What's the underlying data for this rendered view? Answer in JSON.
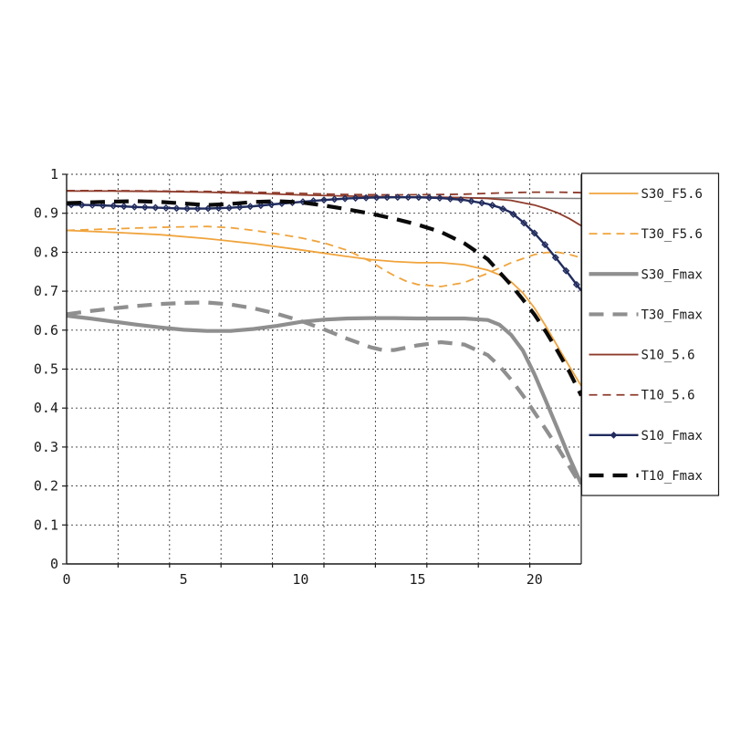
{
  "chart_data": {
    "type": "line",
    "title": "",
    "xlabel": "",
    "ylabel": "",
    "xlim": [
      0,
      22
    ],
    "ylim": [
      0,
      1
    ],
    "grid": true,
    "x_gridline_step": 2.2,
    "y_gridline_step": 0.1,
    "x_ticks": [
      {
        "value": 0,
        "label": "0"
      },
      {
        "value": 5,
        "label": "5"
      },
      {
        "value": 10,
        "label": "10"
      },
      {
        "value": 15,
        "label": "15"
      },
      {
        "value": 20,
        "label": "20"
      }
    ],
    "y_ticks": [
      {
        "value": 0,
        "label": "0"
      },
      {
        "value": 0.1,
        "label": "0.1"
      },
      {
        "value": 0.2,
        "label": "0.2"
      },
      {
        "value": 0.3,
        "label": "0.3"
      },
      {
        "value": 0.4,
        "label": "0.4"
      },
      {
        "value": 0.5,
        "label": "0.5"
      },
      {
        "value": 0.6,
        "label": "0.6"
      },
      {
        "value": 0.7,
        "label": "0.7"
      },
      {
        "value": 0.8,
        "label": "0.8"
      },
      {
        "value": 0.9,
        "label": "0.9"
      },
      {
        "value": 1,
        "label": "1"
      }
    ],
    "legend_position": "right",
    "legend_labels": [
      "S10_Fmax",
      "T10_Fmax",
      "S10_5.6",
      "T10_5.6",
      "S30_Fmax",
      "T30_Fmax",
      "S30_F5.6",
      "T30_F5.6"
    ],
    "series": [
      {
        "name": "",
        "in_legend": false,
        "color": "#7f7f7f",
        "dash": false,
        "weight": "hairline",
        "marker": null,
        "points": [
          [
            14,
            0.941
          ],
          [
            22,
            0.938
          ]
        ]
      },
      {
        "name": "S30_F5.6",
        "color": "#f0a43c",
        "dash": false,
        "weight": "thin",
        "marker": null,
        "points": [
          [
            0,
            0.856
          ],
          [
            2,
            0.851
          ],
          [
            4,
            0.845
          ],
          [
            6,
            0.835
          ],
          [
            8,
            0.822
          ],
          [
            10,
            0.806
          ],
          [
            12,
            0.789
          ],
          [
            13,
            0.781
          ],
          [
            14,
            0.776
          ],
          [
            15,
            0.773
          ],
          [
            16,
            0.773
          ],
          [
            17,
            0.768
          ],
          [
            18,
            0.754
          ],
          [
            18.5,
            0.742
          ],
          [
            19,
            0.724
          ],
          [
            19.5,
            0.696
          ],
          [
            20,
            0.657
          ],
          [
            20.5,
            0.609
          ],
          [
            21,
            0.557
          ],
          [
            21.5,
            0.506
          ],
          [
            22,
            0.457
          ]
        ]
      },
      {
        "name": "T30_F5.6",
        "color": "#f0a43c",
        "dash": true,
        "weight": "thin",
        "marker": null,
        "points": [
          [
            0,
            0.856
          ],
          [
            1,
            0.858
          ],
          [
            2,
            0.86
          ],
          [
            3,
            0.862
          ],
          [
            4,
            0.864
          ],
          [
            5,
            0.865
          ],
          [
            6,
            0.866
          ],
          [
            7,
            0.863
          ],
          [
            8,
            0.856
          ],
          [
            9,
            0.847
          ],
          [
            10,
            0.837
          ],
          [
            11,
            0.824
          ],
          [
            12,
            0.805
          ],
          [
            13,
            0.776
          ],
          [
            13.5,
            0.757
          ],
          [
            14,
            0.74
          ],
          [
            14.5,
            0.726
          ],
          [
            15,
            0.717
          ],
          [
            16,
            0.712
          ],
          [
            17,
            0.722
          ],
          [
            18,
            0.746
          ],
          [
            19,
            0.773
          ],
          [
            20,
            0.794
          ],
          [
            20.5,
            0.799
          ],
          [
            21,
            0.8
          ],
          [
            21.5,
            0.794
          ],
          [
            22,
            0.786
          ]
        ]
      },
      {
        "name": "S30_Fmax",
        "color": "#8f8f8f",
        "dash": false,
        "weight": "thick",
        "marker": null,
        "points": [
          [
            0,
            0.637
          ],
          [
            1,
            0.63
          ],
          [
            2,
            0.622
          ],
          [
            3,
            0.614
          ],
          [
            4,
            0.607
          ],
          [
            5,
            0.601
          ],
          [
            6,
            0.598
          ],
          [
            7,
            0.598
          ],
          [
            8,
            0.603
          ],
          [
            9,
            0.611
          ],
          [
            10,
            0.621
          ],
          [
            11,
            0.627
          ],
          [
            12,
            0.63
          ],
          [
            13,
            0.631
          ],
          [
            14,
            0.631
          ],
          [
            15,
            0.63
          ],
          [
            16,
            0.63
          ],
          [
            17,
            0.63
          ],
          [
            18,
            0.626
          ],
          [
            18.5,
            0.614
          ],
          [
            19,
            0.588
          ],
          [
            19.5,
            0.548
          ],
          [
            20,
            0.487
          ],
          [
            20.5,
            0.417
          ],
          [
            21,
            0.345
          ],
          [
            21.5,
            0.272
          ],
          [
            22,
            0.205
          ]
        ]
      },
      {
        "name": "T30_Fmax",
        "color": "#8f8f8f",
        "dash": true,
        "weight": "thick",
        "marker": null,
        "points": [
          [
            0,
            0.641
          ],
          [
            1,
            0.649
          ],
          [
            2,
            0.656
          ],
          [
            3,
            0.662
          ],
          [
            4,
            0.667
          ],
          [
            5,
            0.67
          ],
          [
            6,
            0.671
          ],
          [
            7,
            0.666
          ],
          [
            8,
            0.656
          ],
          [
            9,
            0.642
          ],
          [
            10,
            0.624
          ],
          [
            11,
            0.602
          ],
          [
            12,
            0.578
          ],
          [
            13,
            0.556
          ],
          [
            13.5,
            0.549
          ],
          [
            14,
            0.549
          ],
          [
            15,
            0.561
          ],
          [
            16,
            0.569
          ],
          [
            17,
            0.563
          ],
          [
            18,
            0.536
          ],
          [
            18.5,
            0.508
          ],
          [
            19,
            0.473
          ],
          [
            19.5,
            0.433
          ],
          [
            20,
            0.389
          ],
          [
            20.5,
            0.344
          ],
          [
            21,
            0.298
          ],
          [
            21.5,
            0.249
          ],
          [
            22,
            0.2
          ]
        ]
      },
      {
        "name": "S10_5.6",
        "color": "#8e3c2c",
        "dash": false,
        "weight": "thin",
        "marker": null,
        "points": [
          [
            0,
            0.957
          ],
          [
            2,
            0.957
          ],
          [
            4,
            0.956
          ],
          [
            6,
            0.954
          ],
          [
            8,
            0.951
          ],
          [
            10,
            0.947
          ],
          [
            12,
            0.944
          ],
          [
            14,
            0.942
          ],
          [
            16,
            0.941
          ],
          [
            17,
            0.94
          ],
          [
            18,
            0.938
          ],
          [
            19,
            0.933
          ],
          [
            20,
            0.921
          ],
          [
            20.5,
            0.912
          ],
          [
            21,
            0.901
          ],
          [
            21.5,
            0.886
          ],
          [
            22,
            0.868
          ]
        ]
      },
      {
        "name": "T10_5.6",
        "color": "#8e3c2c",
        "dash": true,
        "weight": "thin",
        "marker": null,
        "points": [
          [
            0,
            0.958
          ],
          [
            2,
            0.958
          ],
          [
            4,
            0.957
          ],
          [
            6,
            0.956
          ],
          [
            8,
            0.954
          ],
          [
            10,
            0.951
          ],
          [
            12,
            0.948
          ],
          [
            14,
            0.947
          ],
          [
            16,
            0.948
          ],
          [
            17,
            0.949
          ],
          [
            18,
            0.951
          ],
          [
            19,
            0.953
          ],
          [
            20,
            0.954
          ],
          [
            21,
            0.954
          ],
          [
            22,
            0.953
          ]
        ]
      },
      {
        "name": "S10_Fmax",
        "color": "#212c5e",
        "dash": false,
        "weight": "medium",
        "marker": "diamond",
        "points": [
          [
            0,
            0.922
          ],
          [
            1,
            0.921
          ],
          [
            2,
            0.919
          ],
          [
            3,
            0.916
          ],
          [
            4,
            0.914
          ],
          [
            5,
            0.912
          ],
          [
            6,
            0.912
          ],
          [
            7,
            0.914
          ],
          [
            8,
            0.918
          ],
          [
            9,
            0.924
          ],
          [
            10,
            0.929
          ],
          [
            11,
            0.934
          ],
          [
            12,
            0.938
          ],
          [
            13,
            0.94
          ],
          [
            14,
            0.941
          ],
          [
            15,
            0.941
          ],
          [
            16,
            0.939
          ],
          [
            17,
            0.934
          ],
          [
            18,
            0.924
          ],
          [
            18.5,
            0.915
          ],
          [
            19,
            0.902
          ],
          [
            19.5,
            0.878
          ],
          [
            20,
            0.849
          ],
          [
            20.5,
            0.816
          ],
          [
            21,
            0.779
          ],
          [
            21.5,
            0.741
          ],
          [
            22,
            0.701
          ]
        ]
      },
      {
        "name": "T10_Fmax",
        "color": "#0a0a0a",
        "dash": true,
        "weight": "thick",
        "marker": null,
        "points": [
          [
            0,
            0.926
          ],
          [
            1,
            0.928
          ],
          [
            2,
            0.93
          ],
          [
            3,
            0.931
          ],
          [
            4,
            0.929
          ],
          [
            5,
            0.925
          ],
          [
            6,
            0.921
          ],
          [
            7,
            0.924
          ],
          [
            8,
            0.929
          ],
          [
            9,
            0.931
          ],
          [
            10,
            0.928
          ],
          [
            11,
            0.92
          ],
          [
            12,
            0.91
          ],
          [
            13,
            0.899
          ],
          [
            14,
            0.886
          ],
          [
            15,
            0.871
          ],
          [
            16,
            0.852
          ],
          [
            17,
            0.823
          ],
          [
            18,
            0.782
          ],
          [
            19,
            0.716
          ],
          [
            19.5,
            0.679
          ],
          [
            20,
            0.64
          ],
          [
            20.5,
            0.595
          ],
          [
            21,
            0.545
          ],
          [
            21.5,
            0.492
          ],
          [
            22,
            0.432
          ]
        ]
      }
    ],
    "colors": {
      "s10_fmax": "#212c5e",
      "t10_fmax": "#0a0a0a",
      "s10_56": "#8e3c2c",
      "s30_fmax": "#8f8f8f",
      "s30_f56": "#f0a43c",
      "gridline": "#3a3a3a",
      "axis": "#1a1a1a",
      "background": "#ffffff"
    }
  }
}
